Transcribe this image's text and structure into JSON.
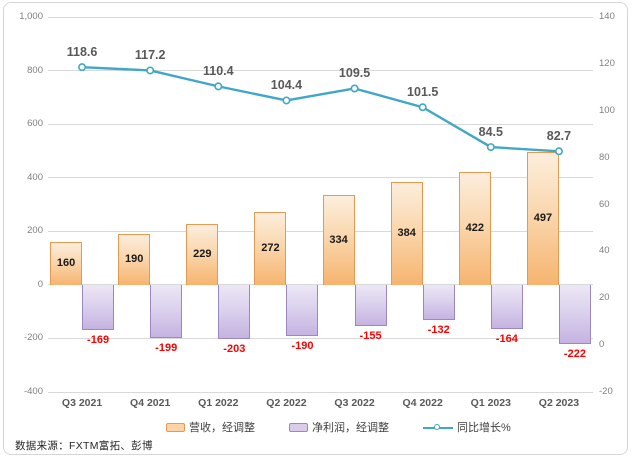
{
  "chart_data": {
    "type": "combo",
    "categories": [
      "Q3 2021",
      "Q4 2021",
      "Q1 2022",
      "Q2 2022",
      "Q3 2022",
      "Q4 2022",
      "Q1 2023",
      "Q2 2023"
    ],
    "series": [
      {
        "name": "营收，经调整",
        "type": "bar",
        "axis": "left",
        "values": [
          160,
          190,
          229,
          272,
          334,
          384,
          422,
          497
        ]
      },
      {
        "name": "净利润，经调整",
        "type": "bar",
        "axis": "left",
        "values": [
          -169,
          -199,
          -203,
          -190,
          -155,
          -132,
          -164,
          -222
        ]
      },
      {
        "name": "同比增长%",
        "type": "line",
        "axis": "right",
        "values": [
          118.6,
          117.2,
          110.4,
          104.4,
          109.5,
          101.5,
          84.5,
          82.7
        ]
      }
    ],
    "left_axis": {
      "min": -400,
      "max": 1000,
      "step": 200,
      "tick_labels": [
        "1,000",
        "800",
        "600",
        "400",
        "200",
        "0",
        "-200",
        "-400"
      ]
    },
    "right_axis": {
      "min": -20,
      "max": 140,
      "step": 20,
      "tick_labels": [
        "140",
        "120",
        "100",
        "80",
        "60",
        "40",
        "20",
        "0",
        "-20"
      ]
    },
    "grid": true,
    "legend_position": "bottom",
    "colors": {
      "revenue_border": "#e89951",
      "profit_border": "#9b87c1",
      "growth_line": "#41a7c7",
      "marker_fill": "#ffffff",
      "revenue_label": "#1a1a1a",
      "profit_label": "#ff0000",
      "growth_label": "#595959",
      "axis_text": "#7f7f7f",
      "gridline": "#d9d9d9"
    }
  },
  "legend": {
    "items": [
      {
        "label": "营收，经调整",
        "swatch": "bar-orange"
      },
      {
        "label": "净利润，经调整",
        "swatch": "bar-purple"
      },
      {
        "label": "同比增长%",
        "swatch": "line"
      }
    ]
  },
  "source": {
    "text": "数据来源：FXTM富拓、彭博"
  }
}
